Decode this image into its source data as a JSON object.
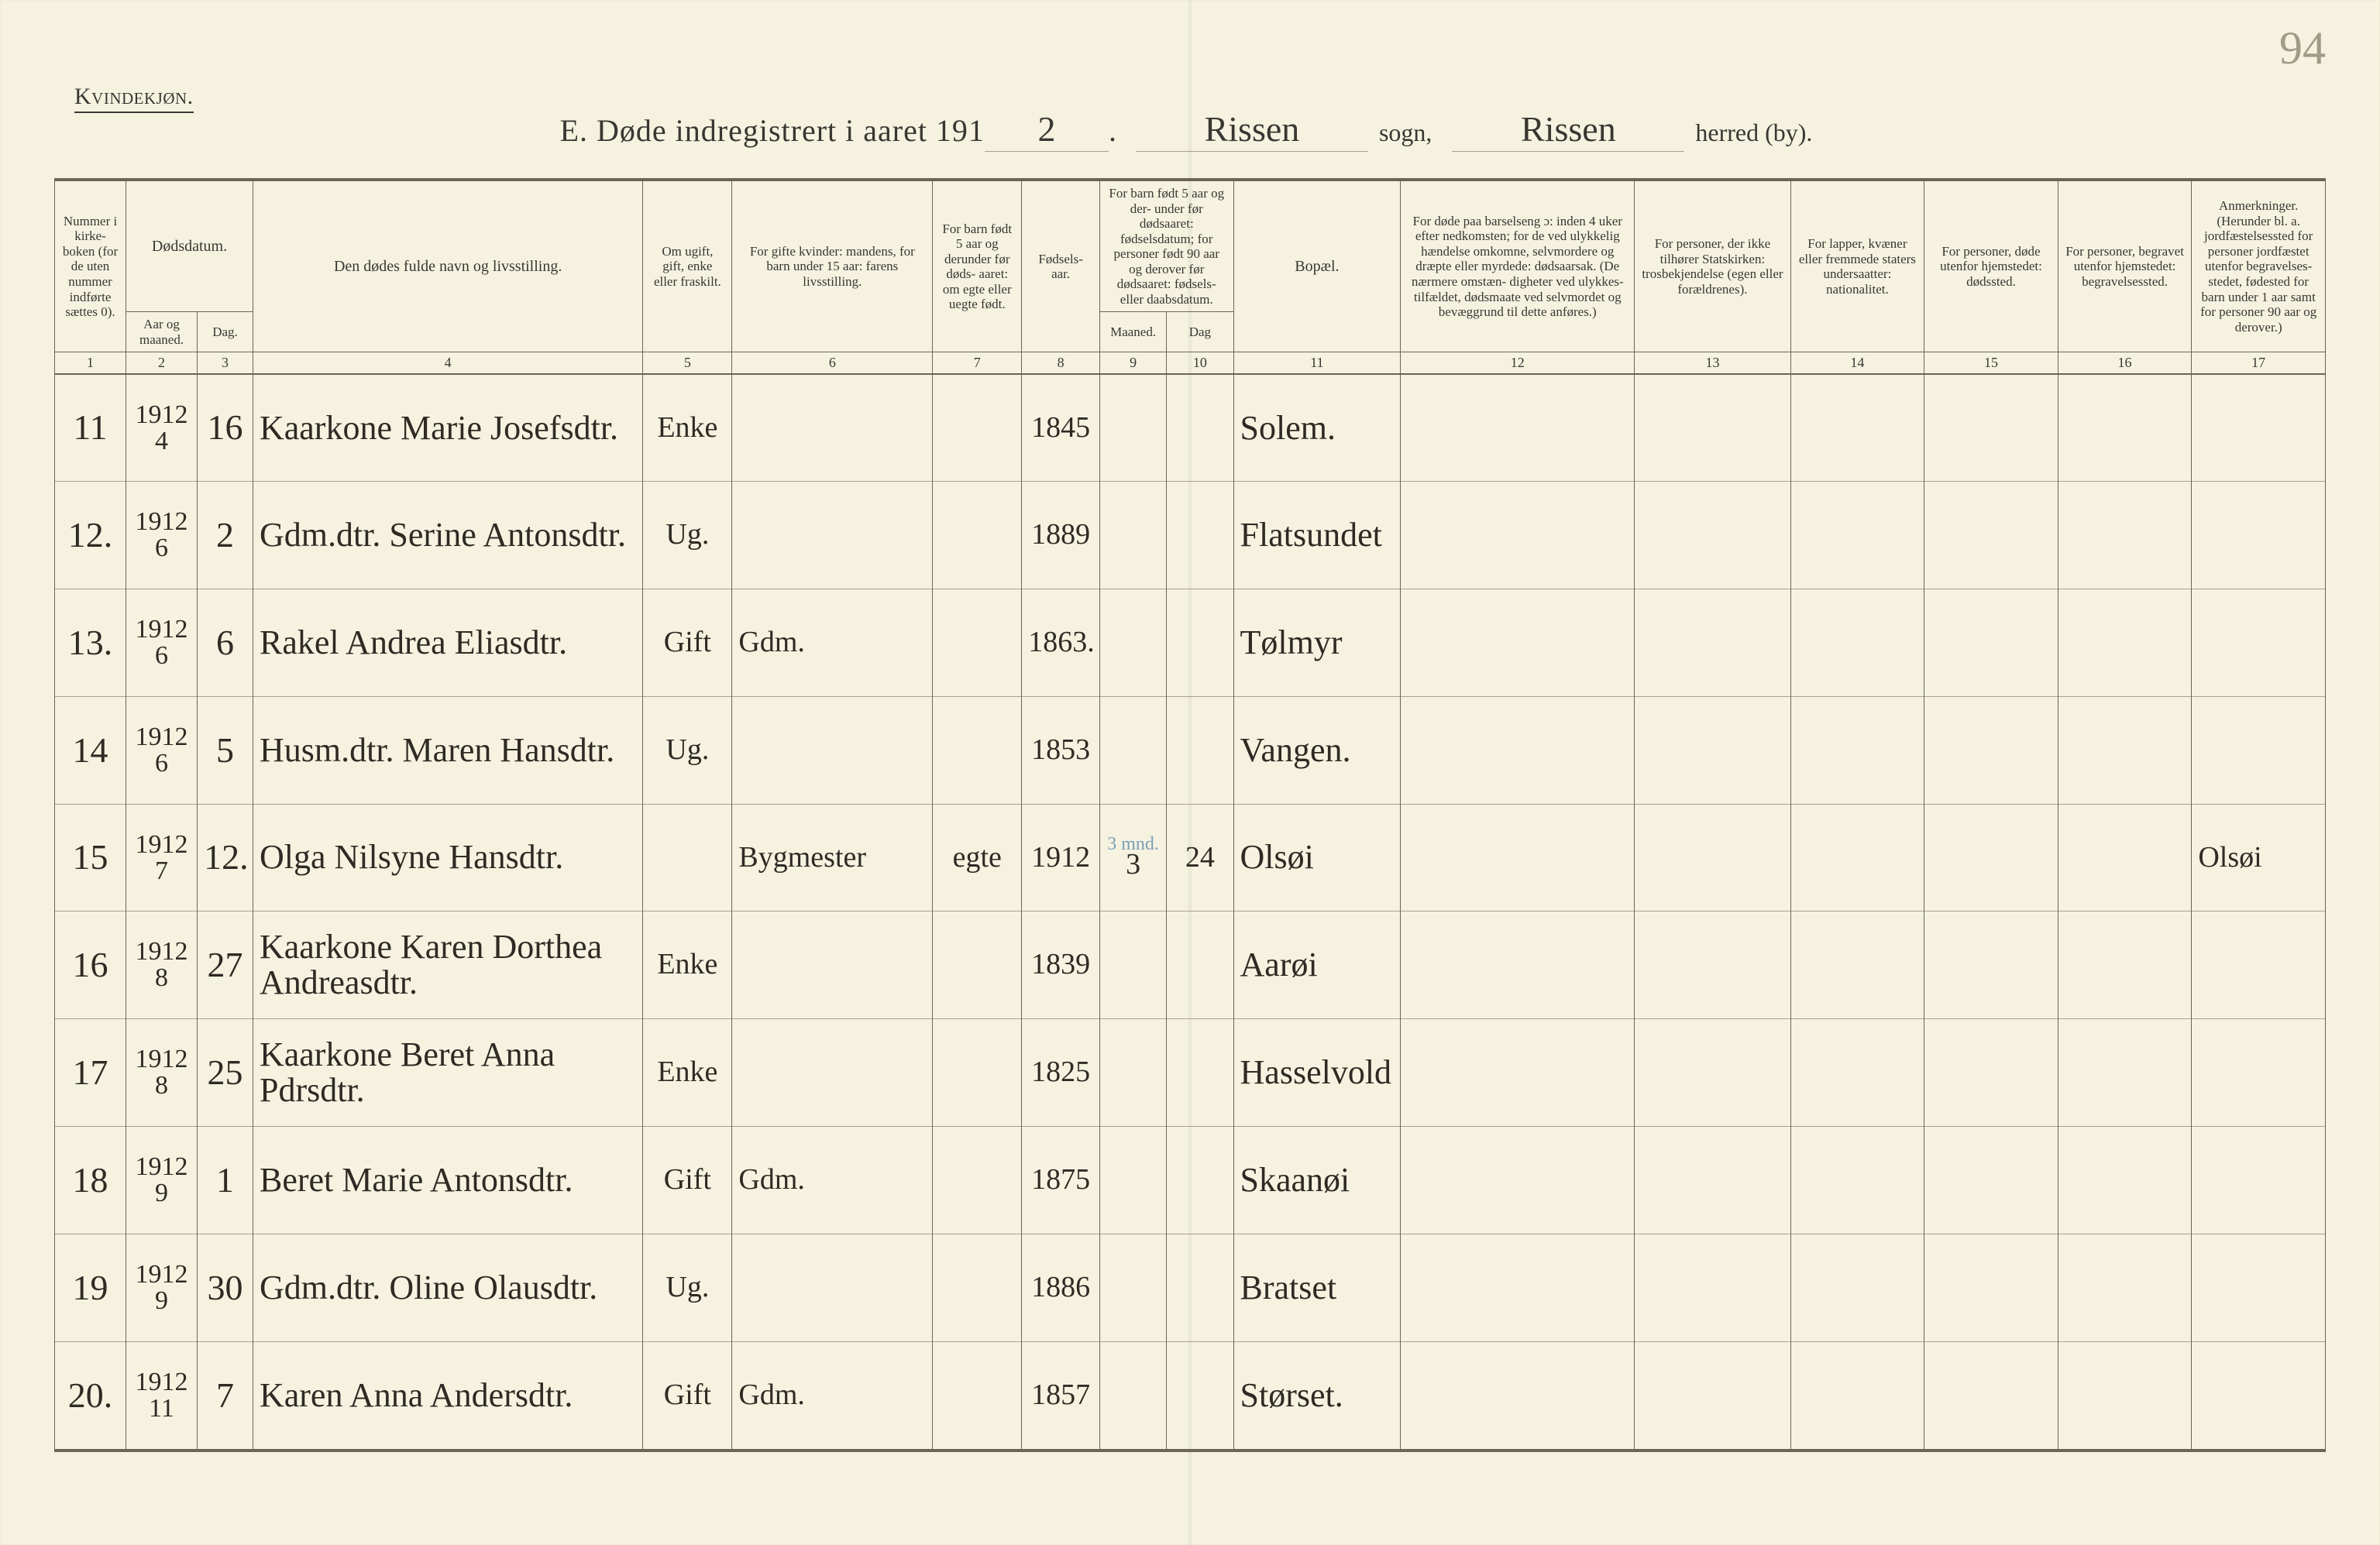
{
  "page_number": "94",
  "section_label": "Kvindekjøn.",
  "title": {
    "prefix": "E.  Døde indregistrert i aaret 191",
    "year_tail": "2",
    "sogn_value": "Rissen",
    "sogn_label": "sogn,",
    "herred_value": "Rissen",
    "herred_label": "herred (by)."
  },
  "colors": {
    "paper": "#f5f3e0",
    "ink": "#3a3632",
    "rule": "#6b6457",
    "rule_soft": "#a9a08f",
    "blue_pencil": "#4a7aa6"
  },
  "col_widths_pct": [
    3.2,
    3.2,
    2.5,
    17.5,
    4,
    9,
    4,
    3.5,
    3,
    3,
    7.5,
    10.5,
    7,
    6,
    6,
    6,
    6
  ],
  "headers": {
    "c1": "Nummer i kirke- boken (for de uten nummer indførte sættes 0).",
    "c2_3_group": "Dødsdatum.",
    "c2": "Aar og maaned.",
    "c3": "Dag.",
    "c4": "Den dødes fulde navn og livsstilling.",
    "c5": "Om ugift, gift, enke eller fraskilt.",
    "c6": "For gifte kvinder: mandens, for barn under 15 aar: farens livsstilling.",
    "c7": "For barn født 5 aar og derunder før døds- aaret: om egte eller uegte født.",
    "c8": "Fødsels- aar.",
    "c9_10_group": "For barn født 5 aar og der- under før dødsaaret: fødselsdatum; for personer født 90 aar og derover før dødsaaret: fødsels- eller daabsdatum.",
    "c9": "Maaned.",
    "c10": "Dag",
    "c11": "Bopæl.",
    "c12": "For døde paa barselseng ɔ: inden 4 uker efter nedkomsten; for de ved ulykkelig hændelse omkomne, selvmordere og dræpte eller myrdede: dødsaarsak. (De nærmere omstæn- digheter ved ulykkes- tilfældet, dødsmaate ved selvmordet og bevæggrund til dette anføres.)",
    "c13": "For personer, der ikke tilhører Statskirken: trosbekjendelse (egen eller forældrenes).",
    "c14": "For lapper, kvæner eller fremmede staters undersaatter: nationalitet.",
    "c15": "For personer, døde utenfor hjemstedet: dødssted.",
    "c16": "For personer, begravet utenfor hjemstedet: begravelsessted.",
    "c17": "Anmerkninger. (Herunder bl. a. jordfæstelsessted for personer jordfæstet utenfor begravelses- stedet, fødested for barn under 1 aar samt for personer 90 aar og derover.)"
  },
  "colnums": [
    "1",
    "2",
    "3",
    "4",
    "5",
    "6",
    "7",
    "8",
    "9",
    "10",
    "11",
    "12",
    "13",
    "14",
    "15",
    "16",
    "17"
  ],
  "rows": [
    {
      "n": "11",
      "ym_yr": "1912",
      "ym_mo": "4",
      "day": "16",
      "name": "Kaarkone Marie Josefsdtr.",
      "status": "Enke",
      "col6": "",
      "col7": "",
      "birth": "1845",
      "m": "",
      "d": "",
      "bopel": "Solem.",
      "c12": "",
      "c13": "",
      "c14": "",
      "c15": "",
      "c16": "",
      "c17": ""
    },
    {
      "n": "12.",
      "ym_yr": "1912",
      "ym_mo": "6",
      "day": "2",
      "name": "Gdm.dtr. Serine Antonsdtr.",
      "status": "Ug.",
      "col6": "",
      "col7": "",
      "birth": "1889",
      "m": "",
      "d": "",
      "bopel": "Flatsundet",
      "c12": "",
      "c13": "",
      "c14": "",
      "c15": "",
      "c16": "",
      "c17": ""
    },
    {
      "n": "13.",
      "ym_yr": "1912",
      "ym_mo": "6",
      "day": "6",
      "name": "Rakel Andrea Eliasdtr.",
      "status": "Gift",
      "col6": "Gdm.",
      "col7": "",
      "birth": "1863.",
      "m": "",
      "d": "",
      "bopel": "Tølmyr",
      "c12": "",
      "c13": "",
      "c14": "",
      "c15": "",
      "c16": "",
      "c17": ""
    },
    {
      "n": "14",
      "ym_yr": "1912",
      "ym_mo": "6",
      "day": "5",
      "name": "Husm.dtr. Maren Hansdtr.",
      "status": "Ug.",
      "col6": "",
      "col7": "",
      "birth": "1853",
      "m": "",
      "d": "",
      "bopel": "Vangen.",
      "c12": "",
      "c13": "",
      "c14": "",
      "c15": "",
      "c16": "",
      "c17": ""
    },
    {
      "n": "15",
      "ym_yr": "1912",
      "ym_mo": "7",
      "day": "12.",
      "name": "Olga Nilsyne Hansdtr.",
      "status": "",
      "col6": "Bygmester",
      "col7": "egte",
      "birth": "1912",
      "m": "3",
      "d": "24",
      "bopel": "Olsøi",
      "c12": "",
      "c13": "",
      "c14": "",
      "c15": "",
      "c16": "",
      "c17": "Olsøi",
      "note": "3 mnd."
    },
    {
      "n": "16",
      "ym_yr": "1912",
      "ym_mo": "8",
      "day": "27",
      "name": "Kaarkone Karen Dorthea Andreasdtr.",
      "status": "Enke",
      "col6": "",
      "col7": "",
      "birth": "1839",
      "m": "",
      "d": "",
      "bopel": "Aarøi",
      "c12": "",
      "c13": "",
      "c14": "",
      "c15": "",
      "c16": "",
      "c17": ""
    },
    {
      "n": "17",
      "ym_yr": "1912",
      "ym_mo": "8",
      "day": "25",
      "name": "Kaarkone Beret Anna Pdrsdtr.",
      "status": "Enke",
      "col6": "",
      "col7": "",
      "birth": "1825",
      "m": "",
      "d": "",
      "bopel": "Hasselvold",
      "c12": "",
      "c13": "",
      "c14": "",
      "c15": "",
      "c16": "",
      "c17": ""
    },
    {
      "n": "18",
      "ym_yr": "1912",
      "ym_mo": "9",
      "day": "1",
      "name": "Beret Marie Antonsdtr.",
      "status": "Gift",
      "col6": "Gdm.",
      "col7": "",
      "birth": "1875",
      "m": "",
      "d": "",
      "bopel": "Skaanøi",
      "c12": "",
      "c13": "",
      "c14": "",
      "c15": "",
      "c16": "",
      "c17": ""
    },
    {
      "n": "19",
      "ym_yr": "1912",
      "ym_mo": "9",
      "day": "30",
      "name": "Gdm.dtr. Oline Olausdtr.",
      "status": "Ug.",
      "col6": "",
      "col7": "",
      "birth": "1886",
      "m": "",
      "d": "",
      "bopel": "Bratset",
      "c12": "",
      "c13": "",
      "c14": "",
      "c15": "",
      "c16": "",
      "c17": ""
    },
    {
      "n": "20.",
      "ym_yr": "1912",
      "ym_mo": "11",
      "day": "7",
      "name": "Karen Anna Andersdtr.",
      "status": "Gift",
      "col6": "Gdm.",
      "col7": "",
      "birth": "1857",
      "m": "",
      "d": "",
      "bopel": "Størset.",
      "c12": "",
      "c13": "",
      "c14": "",
      "c15": "",
      "c16": "",
      "c17": ""
    }
  ]
}
